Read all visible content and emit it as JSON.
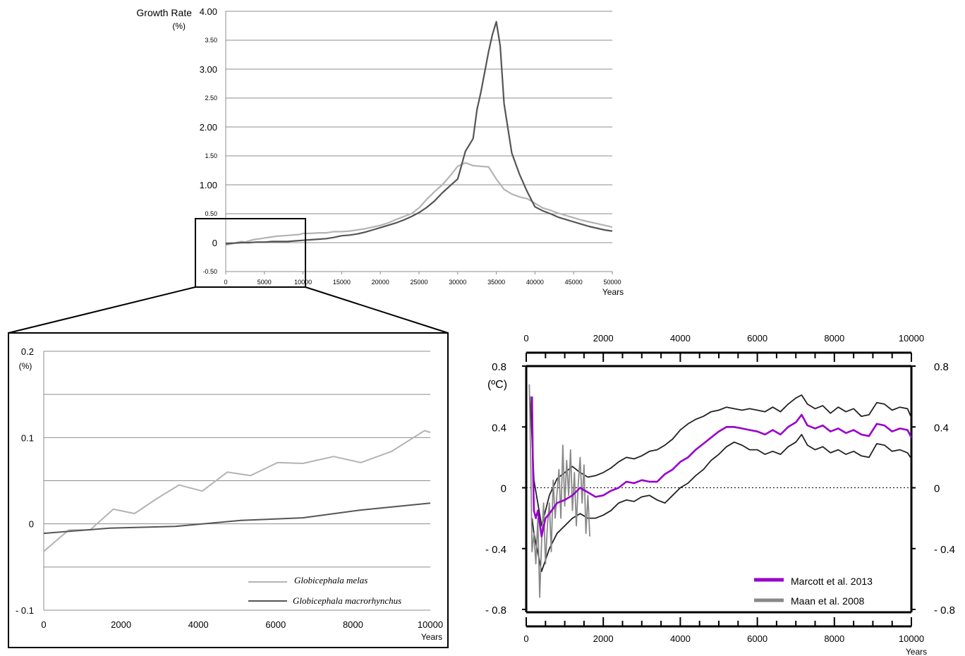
{
  "chart_data": [
    {
      "type": "line",
      "ylabel": "Growth Rate",
      "yunit": "(%)",
      "xlabel": "Years",
      "xlim": [
        0,
        50000
      ],
      "ylim": [
        -0.5,
        4.0
      ],
      "grid": "horizontal",
      "legend": "none",
      "xticks": [
        "0",
        "5000",
        "10000",
        "15000",
        "20000",
        "25000",
        "30000",
        "35000",
        "40000",
        "45000",
        "50000"
      ],
      "yticks": [
        "-0.50",
        "0",
        "0.50",
        "1.00",
        "1.50",
        "2.00",
        "2.50",
        "3.00",
        "3.50",
        "4.00"
      ],
      "series": [
        {
          "color": "#b3b3b3",
          "x": [
            0,
            1000,
            2000,
            2500,
            3500,
            4500,
            5500,
            6500,
            7500,
            8500,
            9500,
            10000,
            11000,
            12000,
            13000,
            14000,
            15000,
            16000,
            17000,
            18000,
            19000,
            20000,
            21000,
            22000,
            23000,
            24000,
            25000,
            26000,
            27000,
            28000,
            29000,
            30000,
            31000,
            32000,
            33000,
            34000,
            35000,
            36000,
            37000,
            38000,
            39000,
            40000,
            41000,
            42000,
            43000,
            44000,
            45000,
            46000,
            47000,
            48000,
            49000,
            50000
          ],
          "y": [
            -0.04,
            -0.01,
            0.02,
            0.01,
            0.05,
            0.07,
            0.09,
            0.11,
            0.12,
            0.13,
            0.14,
            0.16,
            0.16,
            0.17,
            0.17,
            0.19,
            0.19,
            0.2,
            0.22,
            0.24,
            0.27,
            0.3,
            0.34,
            0.4,
            0.45,
            0.5,
            0.6,
            0.75,
            0.88,
            1.0,
            1.15,
            1.32,
            1.38,
            1.33,
            1.32,
            1.31,
            1.1,
            0.92,
            0.84,
            0.79,
            0.76,
            0.68,
            0.6,
            0.56,
            0.51,
            0.47,
            0.43,
            0.39,
            0.36,
            0.33,
            0.3,
            0.27
          ]
        },
        {
          "color": "#555555",
          "x": [
            0,
            1000,
            2000,
            3000,
            4000,
            5000,
            6000,
            7000,
            8000,
            9000,
            10000,
            11000,
            12000,
            13000,
            14000,
            15000,
            16000,
            17000,
            18000,
            19000,
            20000,
            21000,
            22000,
            23000,
            24000,
            25000,
            26000,
            27000,
            28000,
            29000,
            30000,
            31000,
            32000,
            32500,
            33000,
            34000,
            34500,
            35000,
            35500,
            36000,
            37000,
            38000,
            39000,
            40000,
            41000,
            42000,
            43000,
            44000,
            45000,
            46000,
            47000,
            48000,
            49000,
            50000
          ],
          "y": [
            -0.02,
            -0.01,
            0.0,
            0.0,
            0.01,
            0.01,
            0.02,
            0.02,
            0.02,
            0.03,
            0.04,
            0.05,
            0.06,
            0.07,
            0.09,
            0.12,
            0.13,
            0.15,
            0.18,
            0.22,
            0.26,
            0.3,
            0.34,
            0.39,
            0.45,
            0.52,
            0.61,
            0.72,
            0.86,
            0.98,
            1.1,
            1.58,
            1.8,
            2.3,
            2.6,
            3.3,
            3.6,
            3.82,
            3.4,
            2.4,
            1.55,
            1.18,
            0.88,
            0.62,
            0.55,
            0.5,
            0.44,
            0.4,
            0.36,
            0.32,
            0.28,
            0.25,
            0.22,
            0.2
          ]
        }
      ]
    },
    {
      "type": "line",
      "yunit": "(%)",
      "xlabel": "Years",
      "xlim": [
        0,
        10000
      ],
      "ylim": [
        -0.1,
        0.2
      ],
      "grid": "horizontal",
      "legend": "bottom-right",
      "xticks": [
        "0",
        "2000",
        "4000",
        "6000",
        "8000",
        "10000"
      ],
      "yticks": [
        "- 0.1",
        "0",
        "0.1",
        "0.2"
      ],
      "series": [
        {
          "name": "Globicephala melas",
          "color": "#b3b3b3",
          "x": [
            0,
            650,
            1200,
            1800,
            2350,
            2950,
            3500,
            4100,
            4750,
            5350,
            6050,
            6700,
            7500,
            8200,
            9000,
            9850,
            10000
          ],
          "y": [
            -0.032,
            -0.007,
            -0.007,
            0.017,
            0.012,
            0.03,
            0.045,
            0.038,
            0.06,
            0.056,
            0.071,
            0.07,
            0.078,
            0.071,
            0.084,
            0.108,
            0.106
          ]
        },
        {
          "name": "Globicephala macrorhynchus",
          "color": "#555555",
          "x": [
            0,
            1700,
            3400,
            5100,
            6700,
            8200,
            10000
          ],
          "y": [
            -0.011,
            -0.005,
            -0.003,
            0.004,
            0.007,
            0.016,
            0.024
          ]
        }
      ]
    },
    {
      "type": "line",
      "ylabel": "(ºC)",
      "xlabel": "Years",
      "xlim": [
        0,
        10000
      ],
      "ylim": [
        -0.8,
        0.8
      ],
      "grid": "none",
      "legend": "bottom-right",
      "xticks": [
        "0",
        "2000",
        "4000",
        "6000",
        "8000",
        "10000"
      ],
      "yticks_left": [
        "- 0.8",
        "- 0.4",
        "0",
        "0.4",
        "0.8"
      ],
      "yticks_right": [
        "- 0.8",
        "- 0.4",
        "0",
        "0.4",
        "0.8"
      ],
      "zero_line": "dotted",
      "series": [
        {
          "name": "Marcott et al. 2013",
          "color": "#9900cc",
          "x": [
            150,
            170,
            200,
            250,
            300,
            400,
            500,
            600,
            800,
            1000,
            1200,
            1400,
            1600,
            1800,
            2000,
            2200,
            2400,
            2600,
            2800,
            3000,
            3200,
            3400,
            3600,
            3800,
            4000,
            4200,
            4400,
            4600,
            4800,
            5000,
            5200,
            5400,
            5600,
            5800,
            6000,
            6200,
            6400,
            6600,
            6800,
            7000,
            7150,
            7300,
            7500,
            7700,
            7900,
            8100,
            8300,
            8500,
            8700,
            8900,
            9100,
            9300,
            9500,
            9700,
            9900,
            10000
          ],
          "y": [
            0.6,
            0.2,
            -0.15,
            -0.2,
            -0.15,
            -0.32,
            -0.2,
            -0.17,
            -0.1,
            -0.08,
            -0.05,
            0.0,
            -0.03,
            -0.06,
            -0.05,
            -0.02,
            0.0,
            0.04,
            0.03,
            0.05,
            0.04,
            0.04,
            0.09,
            0.12,
            0.17,
            0.2,
            0.25,
            0.29,
            0.33,
            0.37,
            0.4,
            0.4,
            0.39,
            0.38,
            0.37,
            0.35,
            0.38,
            0.35,
            0.4,
            0.43,
            0.48,
            0.41,
            0.39,
            0.41,
            0.37,
            0.39,
            0.36,
            0.38,
            0.35,
            0.34,
            0.42,
            0.41,
            0.37,
            0.39,
            0.38,
            0.33
          ]
        },
        {
          "name": "Maan et al. 2008",
          "color": "#888888",
          "x": [
            80,
            120,
            150,
            200,
            250,
            300,
            350,
            400,
            450,
            500,
            550,
            600,
            650,
            700,
            750,
            800,
            850,
            900,
            950,
            1000,
            1050,
            1100,
            1150,
            1200,
            1250,
            1300,
            1350,
            1400,
            1450,
            1500,
            1550,
            1600,
            1650
          ],
          "y": [
            0.68,
            0.1,
            -0.42,
            -0.3,
            -0.5,
            -0.2,
            -0.72,
            -0.35,
            -0.1,
            -0.5,
            -0.25,
            -0.1,
            -0.42,
            0.05,
            -0.2,
            -0.03,
            0.12,
            -0.2,
            0.28,
            -0.12,
            0.18,
            -0.05,
            0.25,
            -0.15,
            0.1,
            -0.25,
            0.02,
            0.2,
            -0.1,
            0.15,
            -0.3,
            -0.05,
            -0.32
          ]
        },
        {
          "color": "#222222",
          "x": [
            100,
            200,
            400,
            600,
            800,
            1000,
            1200,
            1400,
            1600,
            1800,
            2000,
            2200,
            2400,
            2600,
            2800,
            3000,
            3200,
            3400,
            3600,
            3800,
            4000,
            4200,
            4400,
            4600,
            4800,
            5000,
            5200,
            5400,
            5600,
            5800,
            6000,
            6200,
            6400,
            6600,
            6800,
            7000,
            7150,
            7300,
            7500,
            7700,
            7900,
            8100,
            8300,
            8500,
            8700,
            8900,
            9100,
            9300,
            9500,
            9700,
            9900,
            10000
          ],
          "y": [
            0.6,
            0.05,
            -0.25,
            -0.05,
            0.06,
            0.1,
            0.14,
            0.1,
            0.07,
            0.08,
            0.1,
            0.13,
            0.17,
            0.2,
            0.19,
            0.21,
            0.24,
            0.25,
            0.28,
            0.32,
            0.38,
            0.42,
            0.45,
            0.47,
            0.5,
            0.51,
            0.53,
            0.52,
            0.51,
            0.52,
            0.51,
            0.5,
            0.53,
            0.5,
            0.55,
            0.59,
            0.61,
            0.55,
            0.52,
            0.54,
            0.49,
            0.53,
            0.5,
            0.52,
            0.47,
            0.48,
            0.56,
            0.55,
            0.51,
            0.53,
            0.52,
            0.46
          ]
        },
        {
          "color": "#222222",
          "x": [
            150,
            200,
            400,
            600,
            800,
            1000,
            1200,
            1400,
            1600,
            1800,
            2000,
            2200,
            2400,
            2600,
            2800,
            3000,
            3200,
            3400,
            3600,
            3800,
            4000,
            4200,
            4400,
            4600,
            4800,
            5000,
            5200,
            5400,
            5600,
            5800,
            6000,
            6200,
            6400,
            6600,
            6800,
            7000,
            7150,
            7300,
            7500,
            7700,
            7900,
            8100,
            8300,
            8500,
            8700,
            8900,
            9100,
            9300,
            9500,
            9700,
            9900,
            10000
          ],
          "y": [
            -0.2,
            -0.3,
            -0.55,
            -0.4,
            -0.3,
            -0.25,
            -0.2,
            -0.17,
            -0.2,
            -0.2,
            -0.18,
            -0.15,
            -0.1,
            -0.08,
            -0.09,
            -0.06,
            -0.05,
            -0.08,
            -0.1,
            -0.05,
            0.0,
            0.03,
            0.08,
            0.12,
            0.18,
            0.22,
            0.27,
            0.3,
            0.28,
            0.25,
            0.25,
            0.22,
            0.24,
            0.22,
            0.27,
            0.3,
            0.35,
            0.28,
            0.25,
            0.27,
            0.23,
            0.25,
            0.22,
            0.24,
            0.21,
            0.2,
            0.29,
            0.28,
            0.24,
            0.25,
            0.23,
            0.19
          ]
        }
      ]
    }
  ],
  "legend2": [
    {
      "label": "Globicephala melas",
      "color": "#b3b3b3"
    },
    {
      "label": "Globicephala macrorhynchus",
      "color": "#555555"
    }
  ],
  "legend3": [
    {
      "label": "Marcott et al. 2013",
      "color": "#9900cc"
    },
    {
      "label": "Maan et al. 2008",
      "color": "#888888"
    }
  ]
}
